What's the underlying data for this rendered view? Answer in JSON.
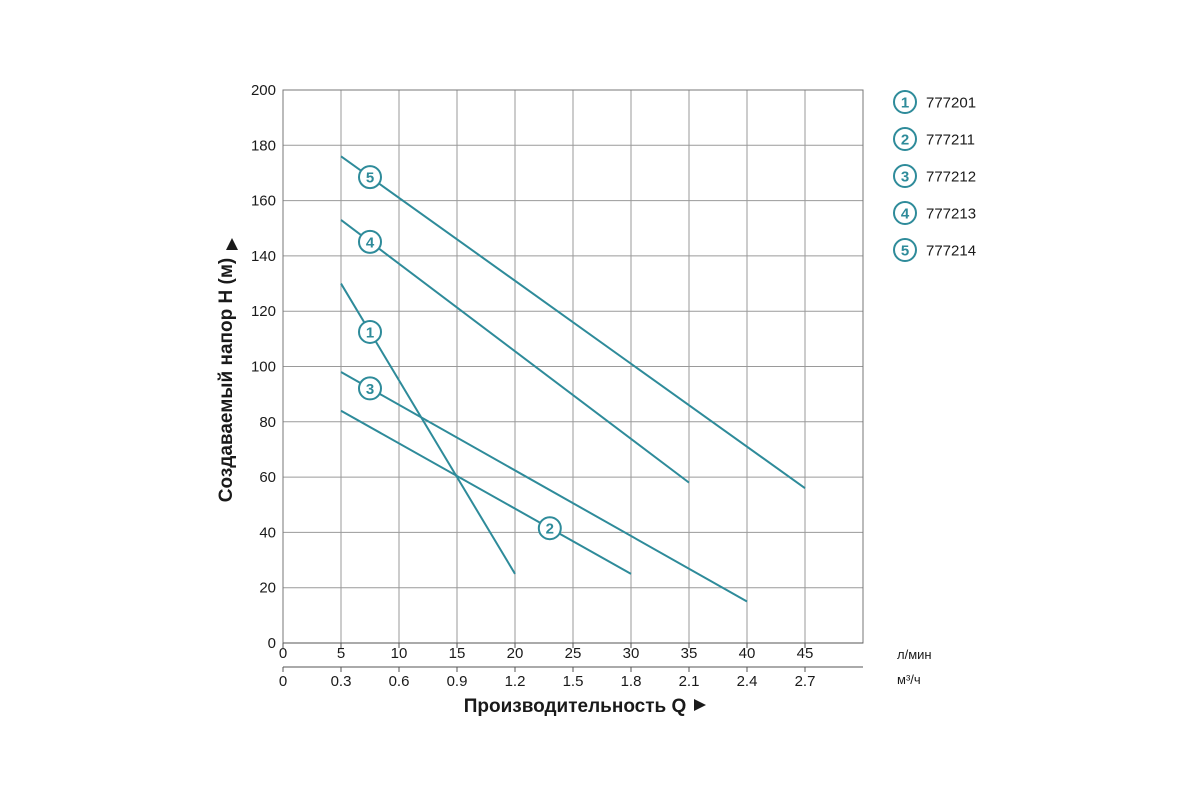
{
  "chart_data": {
    "type": "line",
    "ylabel": "Создаваемый напор H (м)",
    "xlabel": "Производительность Q",
    "x_units": [
      "л/мин",
      "м³/ч"
    ],
    "ylim": [
      0,
      200
    ],
    "xlim": [
      0,
      50
    ],
    "yticks": [
      "0",
      "20",
      "40",
      "60",
      "80",
      "100",
      "120",
      "140",
      "160",
      "180",
      "200"
    ],
    "xticks_lmin": [
      "0",
      "5",
      "10",
      "15",
      "20",
      "25",
      "30",
      "35",
      "40",
      "45"
    ],
    "xticks_m3h": [
      "0",
      "0.3",
      "0.6",
      "0.9",
      "1.2",
      "1.5",
      "1.8",
      "2.1",
      "2.4",
      "2.7"
    ],
    "grid": true,
    "legend_position": "top-right",
    "line_color": "#2e8b9a",
    "series": [
      {
        "badge": "1",
        "name": "777201",
        "x": [
          5,
          20
        ],
        "y": [
          130,
          25
        ],
        "label_x": 7.5
      },
      {
        "badge": "2",
        "name": "777211",
        "x": [
          5,
          30
        ],
        "y": [
          84,
          25
        ],
        "label_x": 23
      },
      {
        "badge": "3",
        "name": "777212",
        "x": [
          5,
          40
        ],
        "y": [
          98,
          15
        ],
        "label_x": 7.5
      },
      {
        "badge": "4",
        "name": "777213",
        "x": [
          5,
          35
        ],
        "y": [
          153,
          58
        ],
        "label_x": 7.5
      },
      {
        "badge": "5",
        "name": "777214",
        "x": [
          5,
          45
        ],
        "y": [
          176,
          56
        ],
        "label_x": 7.5
      }
    ]
  }
}
